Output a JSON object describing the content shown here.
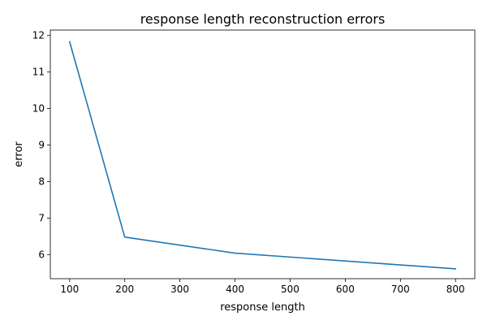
{
  "chart_data": {
    "type": "line",
    "title": "response length reconstruction errors",
    "xlabel": "response length",
    "ylabel": "error",
    "x": [
      100,
      200,
      400,
      800
    ],
    "series": [
      {
        "values": [
          11.83,
          6.48,
          6.04,
          5.61
        ],
        "color": "#1f77b4"
      }
    ],
    "xlim": [
      65,
      835
    ],
    "ylim": [
      5.34,
      12.15
    ],
    "xticks": [
      100,
      200,
      300,
      400,
      500,
      600,
      700,
      800
    ],
    "yticks": [
      6,
      7,
      8,
      9,
      10,
      11,
      12
    ],
    "grid": false,
    "legend": "none"
  }
}
